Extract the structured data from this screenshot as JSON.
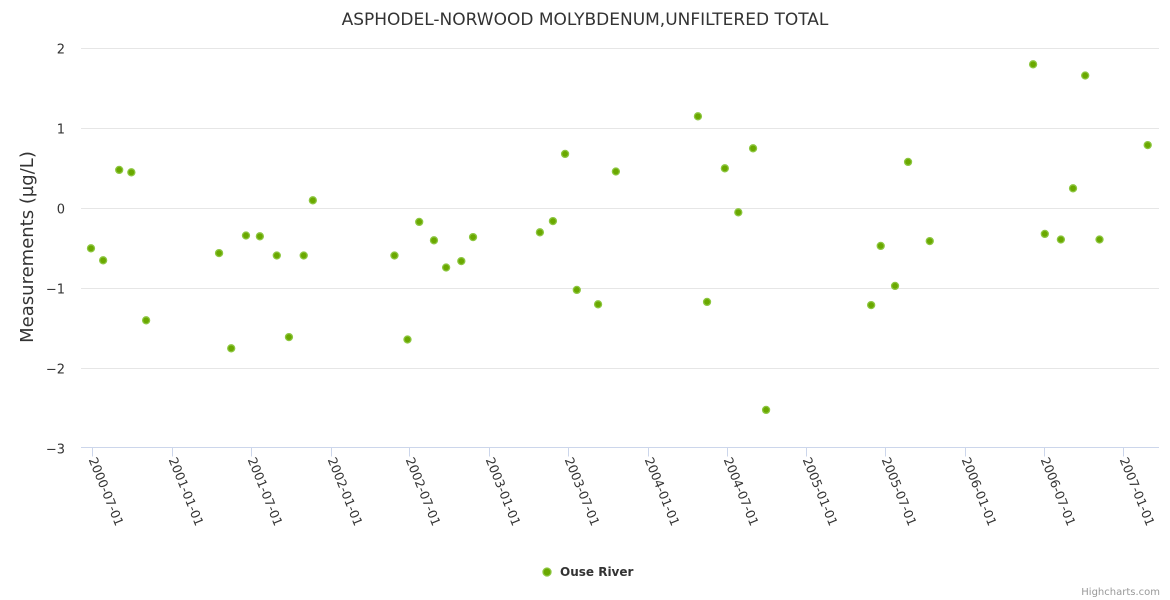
{
  "chart_data": {
    "type": "scatter",
    "title": "ASPHODEL-NORWOOD MOLYBDENUM,UNFILTERED TOTAL",
    "xlabel": "",
    "ylabel": "Measurements (µg/L)",
    "ylim": [
      -3,
      2
    ],
    "xlim": [
      "2000-06-05",
      "2007-03-24"
    ],
    "yticks": [
      "2",
      "1",
      "0",
      "−1",
      "−2",
      "−3"
    ],
    "ytick_values": [
      2,
      1,
      0,
      -1,
      -2,
      -3
    ],
    "xticks": [
      "2000-07-01",
      "2001-01-01",
      "2001-07-01",
      "2002-01-01",
      "2002-07-01",
      "2003-01-01",
      "2003-07-01",
      "2004-01-01",
      "2004-07-01",
      "2005-01-01",
      "2005-07-01",
      "2006-01-01",
      "2006-07-01",
      "2007-01-01"
    ],
    "grid": true,
    "legend_position": "bottom-center",
    "series": [
      {
        "name": "Ouse River",
        "color": "#6aa800",
        "border_color": "#8cc63f",
        "points": [
          [
            "2000-06-28",
            -0.51
          ],
          [
            "2000-07-26",
            -0.66
          ],
          [
            "2000-09-01",
            0.47
          ],
          [
            "2000-09-29",
            0.44
          ],
          [
            "2000-11-02",
            -1.41
          ],
          [
            "2001-04-19",
            -0.57
          ],
          [
            "2001-05-17",
            -1.76
          ],
          [
            "2001-06-20",
            -0.35
          ],
          [
            "2001-07-22",
            -0.36
          ],
          [
            "2001-08-30",
            -0.6
          ],
          [
            "2001-09-27",
            -1.62
          ],
          [
            "2001-10-31",
            -0.6
          ],
          [
            "2001-11-21",
            0.09
          ],
          [
            "2002-05-28",
            -0.6
          ],
          [
            "2002-06-27",
            -1.65
          ],
          [
            "2002-07-24",
            -0.18
          ],
          [
            "2002-08-27",
            -0.41
          ],
          [
            "2002-09-24",
            -0.75
          ],
          [
            "2002-10-29",
            -0.67
          ],
          [
            "2002-11-25",
            -0.37
          ],
          [
            "2003-04-28",
            -0.31
          ],
          [
            "2003-05-28",
            -0.17
          ],
          [
            "2003-06-25",
            0.67
          ],
          [
            "2003-07-22",
            -1.03
          ],
          [
            "2003-09-09",
            -1.21
          ],
          [
            "2003-10-20",
            0.45
          ],
          [
            "2004-04-26",
            1.14
          ],
          [
            "2004-05-17",
            -1.18
          ],
          [
            "2004-06-27",
            0.49
          ],
          [
            "2004-07-28",
            -0.06
          ],
          [
            "2004-08-31",
            0.74
          ],
          [
            "2004-09-30",
            -2.53
          ],
          [
            "2005-05-30",
            -1.22
          ],
          [
            "2005-06-21",
            -0.48
          ],
          [
            "2005-07-24",
            -0.98
          ],
          [
            "2005-08-23",
            0.57
          ],
          [
            "2005-10-12",
            -0.42
          ],
          [
            "2006-06-07",
            1.79
          ],
          [
            "2006-07-04",
            -0.33
          ],
          [
            "2006-08-10",
            -0.4
          ],
          [
            "2006-09-07",
            0.24
          ],
          [
            "2006-10-05",
            1.65
          ],
          [
            "2006-11-07",
            -0.4
          ],
          [
            "2007-02-26",
            0.78
          ]
        ]
      }
    ]
  },
  "credit": "Highcharts.com"
}
